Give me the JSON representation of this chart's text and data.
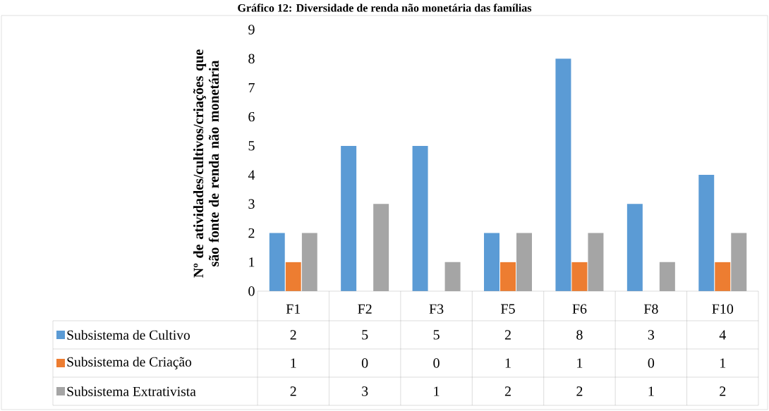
{
  "chart_data": {
    "type": "bar",
    "title": "Gráfico 12: Diversidade de renda não monetária das famílias",
    "ylabel": "Nº de atividades/cultivos/criações que são fonte de renda não monetária",
    "categories": [
      "F1",
      "F2",
      "F3",
      "F5",
      "F6",
      "F8",
      "F10"
    ],
    "series": [
      {
        "name": "Subsistema de Cultivo",
        "color": "#5b9bd5",
        "values": [
          2,
          5,
          5,
          2,
          8,
          3,
          4
        ]
      },
      {
        "name": "Subsistema de Criação",
        "color": "#ed7d31",
        "values": [
          1,
          0,
          0,
          1,
          1,
          0,
          1
        ]
      },
      {
        "name": "Subsistema Extrativista",
        "color": "#a5a5a5",
        "values": [
          2,
          3,
          1,
          2,
          2,
          1,
          2
        ]
      }
    ],
    "ylim": [
      0,
      9
    ],
    "yticks": [
      0,
      1,
      2,
      3,
      4,
      5,
      6,
      7,
      8,
      9
    ],
    "data_labels": true,
    "legend": "bottom"
  }
}
